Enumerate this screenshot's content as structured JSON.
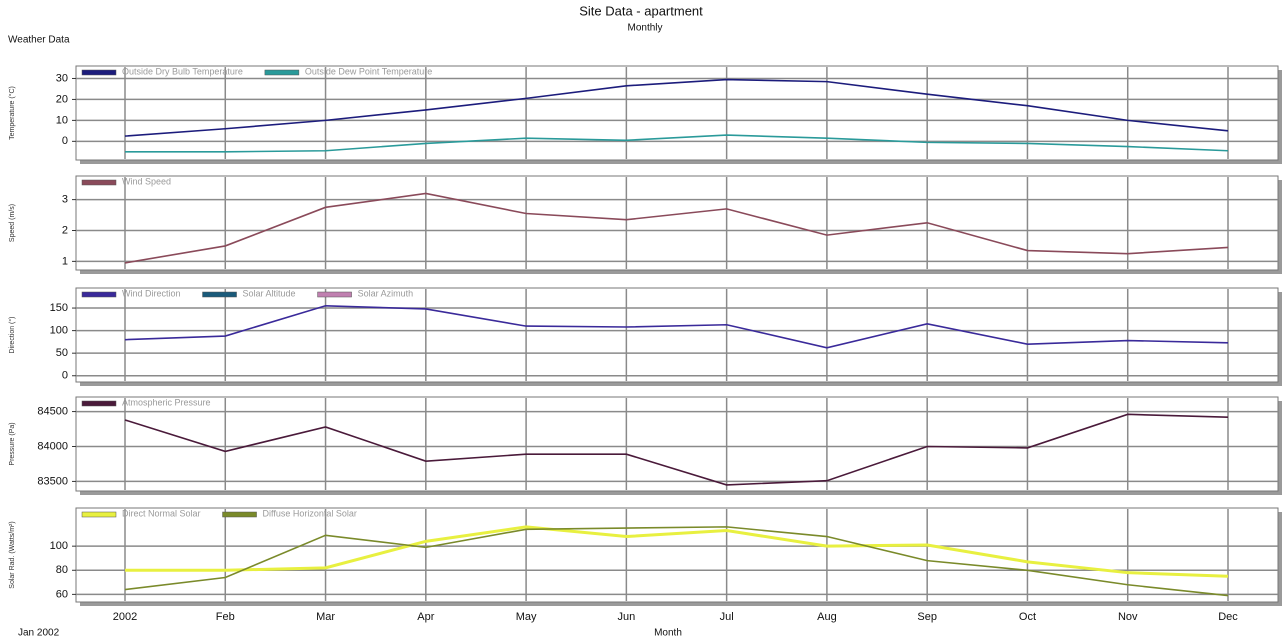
{
  "header": {
    "title": "Site Data - apartment",
    "subtitle": "Monthly",
    "left_label": "Weather Data"
  },
  "footer": {
    "start_label": "Jan 2002",
    "xlabel": "Month"
  },
  "chart_data": [
    {
      "type": "line",
      "ylabel": "Temperature (°C)",
      "ylim": [
        -7,
        35
      ],
      "yticks": [
        0,
        10,
        20,
        30
      ],
      "grid": true,
      "series": [
        {
          "name": "Outside Dry Bulb Temperature",
          "color": "#1c1c7c",
          "values": [
            2.5,
            6,
            10,
            15,
            20.5,
            26.5,
            29.5,
            28.5,
            22.5,
            17,
            10,
            5
          ]
        },
        {
          "name": "Outside Dew Point Temperature",
          "color": "#2a9a9a",
          "values": [
            -5,
            -5,
            -4.5,
            -1,
            1.5,
            0.5,
            3,
            1.5,
            -0.5,
            -1,
            -2.5,
            -4.5
          ]
        }
      ]
    },
    {
      "type": "line",
      "ylabel": "Speed (m/s)",
      "ylim": [
        0.85,
        3.7
      ],
      "yticks": [
        1,
        2,
        3
      ],
      "grid": true,
      "series": [
        {
          "name": "Wind Speed",
          "color": "#8a4a5a",
          "values": [
            0.95,
            1.5,
            2.75,
            3.2,
            2.55,
            2.35,
            2.7,
            1.85,
            2.25,
            1.35,
            1.25,
            1.45
          ]
        }
      ]
    },
    {
      "type": "line",
      "ylabel": "Direction (°)",
      "ylim": [
        -5,
        190
      ],
      "yticks": [
        0,
        50,
        100,
        150
      ],
      "grid": true,
      "series": [
        {
          "name": "Wind Direction",
          "color": "#3a2a9a",
          "values": [
            80,
            88,
            155,
            148,
            110,
            108,
            113,
            62,
            115,
            70,
            78,
            73
          ]
        },
        {
          "name": "Solar Altitude",
          "color": "#1a5a7a",
          "values": [
            null,
            null,
            null,
            null,
            null,
            null,
            null,
            null,
            null,
            null,
            null,
            null
          ]
        },
        {
          "name": "Solar Azimuth",
          "color": "#c080b0",
          "values": [
            null,
            null,
            null,
            null,
            null,
            null,
            null,
            null,
            null,
            null,
            null,
            null
          ]
        }
      ]
    },
    {
      "type": "line",
      "ylabel": "Pressure (Pa)",
      "ylim": [
        83420,
        84680
      ],
      "yticks": [
        83500,
        84000,
        84500
      ],
      "grid": true,
      "series": [
        {
          "name": "Atmospheric Pressure",
          "color": "#4a1a3a",
          "values": [
            84380,
            83930,
            84280,
            83790,
            83890,
            83890,
            83450,
            83510,
            84000,
            83980,
            84460,
            84420
          ]
        }
      ]
    },
    {
      "type": "line",
      "ylabel": "Solar Rad. (Watts/m²)",
      "ylim": [
        57,
        130
      ],
      "yticks": [
        60,
        80,
        100
      ],
      "grid": true,
      "categories": [
        "2002",
        "Feb",
        "Mar",
        "Apr",
        "May",
        "Jun",
        "Jul",
        "Aug",
        "Sep",
        "Oct",
        "Nov",
        "Dec"
      ],
      "series": [
        {
          "name": "Direct Normal Solar",
          "color": "#e8f040",
          "values": [
            80,
            80,
            82,
            104,
            116,
            108,
            113,
            100,
            101,
            87,
            78,
            75
          ]
        },
        {
          "name": "Diffuse Horizontal Solar",
          "color": "#7a8a2a",
          "values": [
            64,
            74,
            109,
            99,
            114,
            115,
            116,
            108,
            88,
            80,
            68,
            59
          ]
        }
      ]
    }
  ]
}
